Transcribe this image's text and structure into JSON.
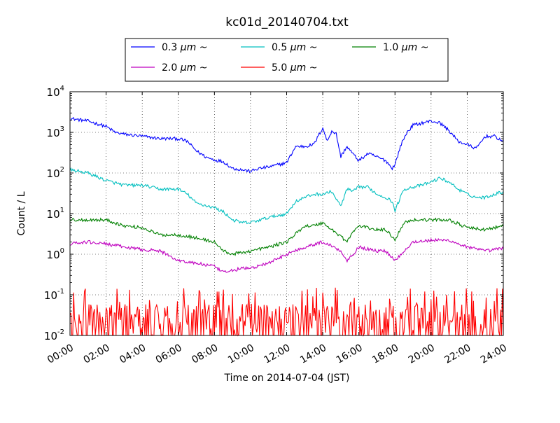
{
  "chart_data": {
    "type": "line",
    "title": "kc01d_20140704.txt",
    "xlabel": "Time on 2014-07-04 (JST)",
    "ylabel": "Count / L",
    "xlim": [
      "00:00",
      "24:00"
    ],
    "ylim": [
      0.01,
      10000
    ],
    "yscale": "log",
    "grid": true,
    "legend_position": "top-center",
    "x_ticks": [
      "00:00",
      "02:00",
      "04:00",
      "06:00",
      "08:00",
      "10:00",
      "12:00",
      "14:00",
      "16:00",
      "18:00",
      "20:00",
      "22:00",
      "24:00"
    ],
    "y_ticks": [
      {
        "value": 0.01,
        "base": "10",
        "exp": "-2"
      },
      {
        "value": 0.1,
        "base": "10",
        "exp": "-1"
      },
      {
        "value": 1,
        "base": "10",
        "exp": "0"
      },
      {
        "value": 10,
        "base": "10",
        "exp": "1"
      },
      {
        "value": 100,
        "base": "10",
        "exp": "2"
      },
      {
        "value": 1000,
        "base": "10",
        "exp": "3"
      },
      {
        "value": 10000,
        "base": "10",
        "exp": "4"
      }
    ],
    "series": [
      {
        "name": "0.3 μm ~",
        "name_prefix": "0.3 ",
        "name_unit": "μm",
        "name_suffix": " ~",
        "color": "#0000ff",
        "x": [
          "00:00",
          "01:00",
          "02:00",
          "02:30",
          "03:00",
          "04:00",
          "05:00",
          "06:00",
          "06:30",
          "07:00",
          "07:30",
          "08:00",
          "08:30",
          "09:00",
          "09:30",
          "10:00",
          "10:30",
          "11:00",
          "12:00",
          "12:30",
          "13:00",
          "13:30",
          "14:00",
          "14:15",
          "14:30",
          "14:45",
          "15:00",
          "15:20",
          "15:40",
          "16:00",
          "16:30",
          "17:00",
          "17:30",
          "17:50",
          "18:00",
          "18:20",
          "18:40",
          "19:00",
          "19:30",
          "20:00",
          "20:30",
          "21:00",
          "21:30",
          "22:00",
          "22:30",
          "23:00",
          "23:30",
          "24:00"
        ],
        "y": [
          2200,
          1900,
          1400,
          1000,
          900,
          800,
          700,
          700,
          600,
          350,
          250,
          210,
          190,
          130,
          120,
          110,
          130,
          140,
          180,
          450,
          450,
          500,
          1300,
          600,
          1100,
          900,
          250,
          450,
          300,
          200,
          300,
          250,
          200,
          130,
          160,
          500,
          1000,
          1500,
          1700,
          1900,
          1700,
          1100,
          600,
          500,
          400,
          800,
          800,
          600
        ]
      },
      {
        "name": "0.5 μm ~",
        "name_prefix": "0.5 ",
        "name_unit": "μm",
        "name_suffix": " ~",
        "color": "#00bfbf",
        "x": [
          "00:00",
          "01:00",
          "02:00",
          "03:00",
          "04:00",
          "05:00",
          "06:00",
          "06:30",
          "07:00",
          "08:00",
          "08:30",
          "09:00",
          "09:30",
          "10:00",
          "11:00",
          "12:00",
          "12:30",
          "13:00",
          "13:30",
          "14:00",
          "14:30",
          "15:00",
          "15:20",
          "15:40",
          "16:00",
          "16:30",
          "17:00",
          "17:30",
          "17:50",
          "18:00",
          "18:30",
          "19:00",
          "19:30",
          "20:00",
          "20:30",
          "21:00",
          "21:30",
          "22:00",
          "22:30",
          "23:00",
          "23:30",
          "24:00"
        ],
        "y": [
          120,
          100,
          65,
          50,
          50,
          40,
          40,
          30,
          18,
          14,
          11,
          7,
          6,
          6,
          8,
          10,
          20,
          25,
          30,
          30,
          35,
          15,
          40,
          35,
          45,
          45,
          30,
          25,
          20,
          12,
          40,
          45,
          50,
          60,
          75,
          60,
          40,
          30,
          25,
          25,
          30,
          35
        ]
      },
      {
        "name": "1.0 μm ~",
        "name_prefix": "1.0 ",
        "name_unit": "μm",
        "name_suffix": " ~",
        "color": "#008000",
        "x": [
          "00:00",
          "01:00",
          "02:00",
          "03:00",
          "04:00",
          "05:00",
          "06:00",
          "07:00",
          "08:00",
          "08:30",
          "09:00",
          "09:30",
          "10:00",
          "11:00",
          "12:00",
          "13:00",
          "13:30",
          "14:00",
          "14:30",
          "15:00",
          "15:20",
          "15:40",
          "16:00",
          "17:00",
          "17:30",
          "18:00",
          "18:30",
          "19:00",
          "20:00",
          "21:00",
          "22:00",
          "23:00",
          "24:00"
        ],
        "y": [
          7,
          7,
          7,
          5,
          4.5,
          3,
          3,
          2.5,
          2,
          1.2,
          1.0,
          1.1,
          1.2,
          1.5,
          2,
          5,
          5,
          6,
          4,
          2.8,
          2,
          3.5,
          5,
          4,
          4,
          2.3,
          6,
          7,
          7,
          7,
          4.5,
          4,
          5
        ]
      },
      {
        "name": "2.0 μm ~",
        "name_prefix": "2.0 ",
        "name_unit": "μm",
        "name_suffix": " ~",
        "color": "#bf00bf",
        "x": [
          "00:00",
          "01:00",
          "02:00",
          "03:00",
          "04:00",
          "05:00",
          "06:00",
          "07:00",
          "08:00",
          "08:30",
          "09:00",
          "09:30",
          "10:00",
          "11:00",
          "12:00",
          "13:00",
          "14:00",
          "14:30",
          "15:00",
          "15:20",
          "15:40",
          "16:00",
          "17:00",
          "17:30",
          "18:00",
          "18:30",
          "19:00",
          "20:00",
          "21:00",
          "22:00",
          "23:00",
          "24:00"
        ],
        "y": [
          1.8,
          2,
          1.8,
          1.5,
          1.3,
          1.2,
          0.7,
          0.6,
          0.5,
          0.35,
          0.4,
          0.45,
          0.45,
          0.6,
          1.0,
          1.5,
          2,
          1.6,
          1.2,
          0.7,
          1.0,
          1.5,
          1.2,
          1.2,
          0.7,
          1.2,
          2,
          2.2,
          2.2,
          1.5,
          1.2,
          1.4
        ]
      },
      {
        "name": "5.0 μm ~",
        "name_prefix": "5.0 ",
        "name_unit": "μm",
        "name_suffix": " ~",
        "color": "#ff0000",
        "x": [
          "00:00",
          "02:00",
          "04:00",
          "06:00",
          "08:00",
          "10:00",
          "12:00",
          "14:00",
          "16:00",
          "18:00",
          "20:00",
          "22:00",
          "24:00"
        ],
        "y": [
          0.03,
          0.03,
          0.03,
          0.03,
          0.025,
          0.025,
          0.03,
          0.03,
          0.03,
          0.03,
          0.03,
          0.03,
          0.025
        ],
        "ymin": 0.01,
        "ymax": 0.15
      }
    ]
  }
}
